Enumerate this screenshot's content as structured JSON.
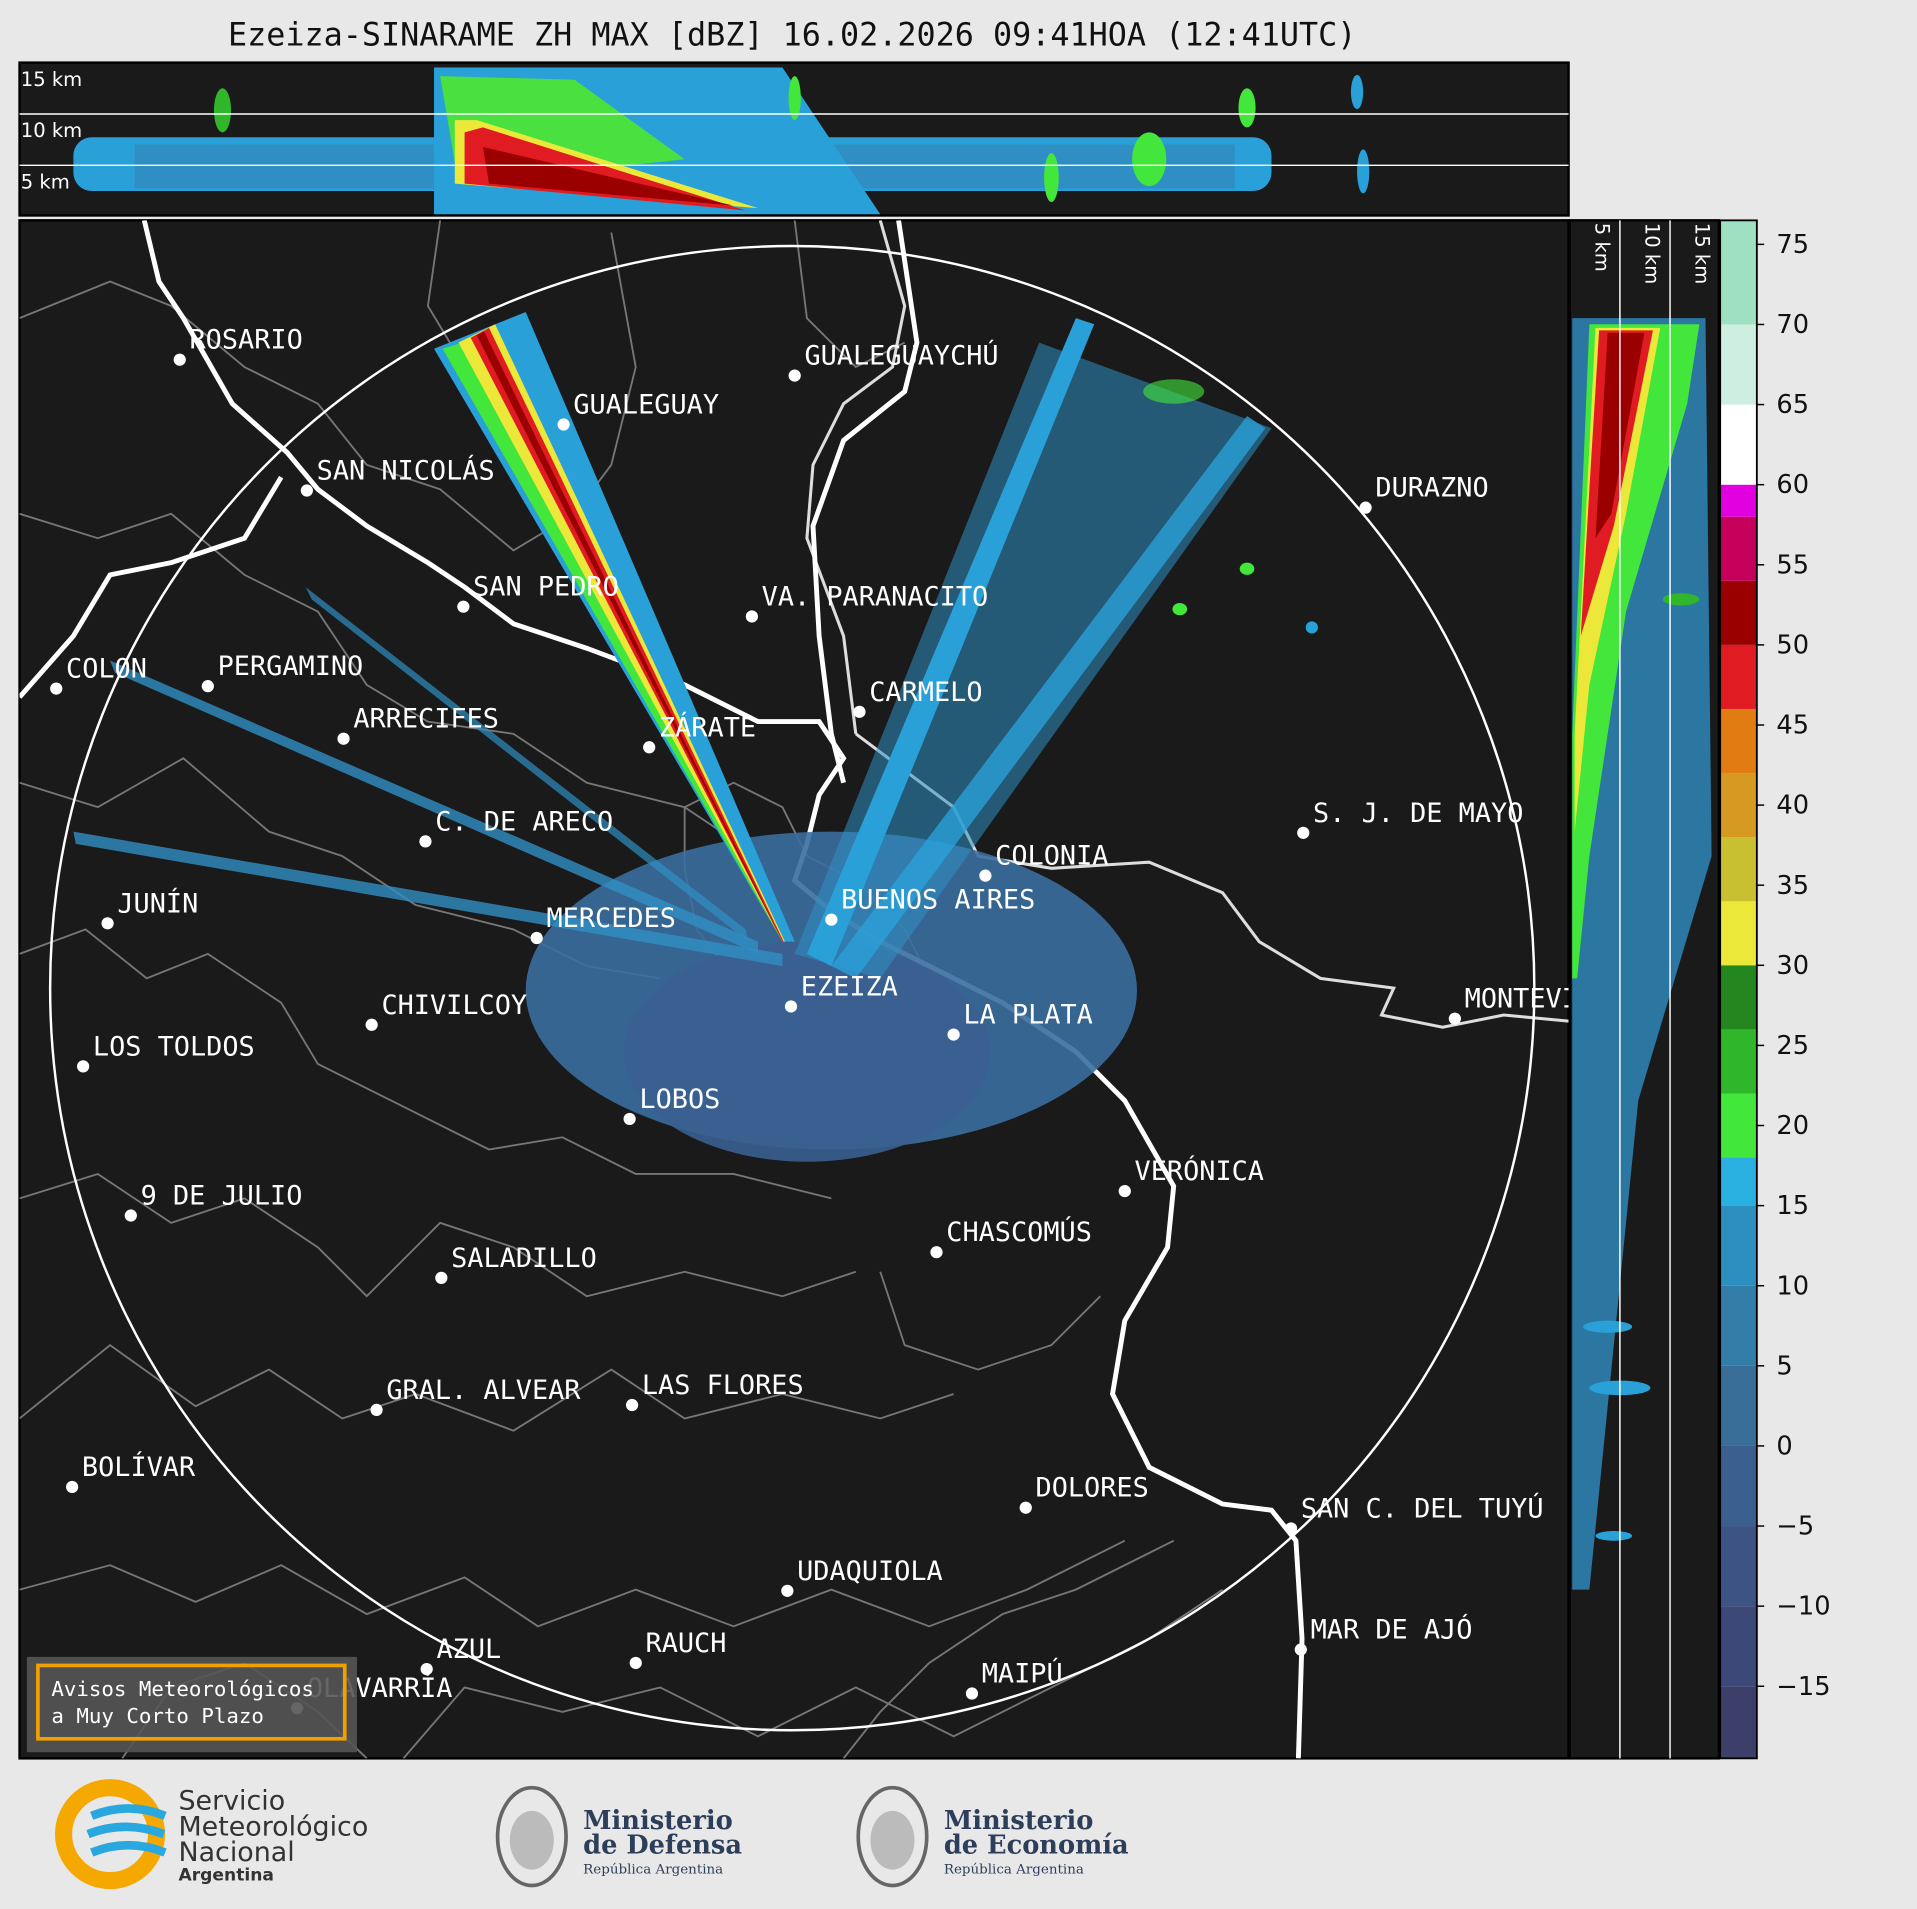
{
  "title": "Ezeiza-SINARAME ZH MAX [dBZ] 16.02.2026 09:41HOA (12:41UTC)",
  "height_labels": [
    "15 km",
    "10 km",
    "5 km"
  ],
  "cities": [
    "ROSARIO",
    "GUALEGUAYCHÚ",
    "GUALEGUAY",
    "SAN NICOLÁS",
    "DURAZNO",
    "SAN PEDRO",
    "VA. PARANACITO",
    "COLON",
    "PERGAMINO",
    "CARMELO",
    "ARRECIFES",
    "ZÁRATE",
    "S. J. DE MAYO",
    "C. DE ARECO",
    "COLONIA",
    "BUENOS AIRES",
    "JUNÍN",
    "MERCEDES",
    "EZEIZA",
    "MONTEVIDEO",
    "LA PLATA",
    "CHIVILCOY",
    "LOS TOLDOS",
    "LOBOS",
    "VERÓNICA",
    "9 DE JULIO",
    "CHASCOMÚS",
    "SALADILLO",
    "GRAL. ALVEAR",
    "LAS FLORES",
    "BOLÍVAR",
    "DOLORES",
    "SAN C. DEL TUYÚ",
    "UDAQUIOLA",
    "MAR DE AJÓ",
    "AZUL",
    "RAUCH",
    "OLAVARRÍA",
    "MAIPÚ"
  ],
  "colorbar": {
    "lim": [
      -19.5,
      76.5
    ],
    "ticks": [
      75,
      70,
      65,
      60,
      55,
      50,
      45,
      40,
      35,
      30,
      25,
      20,
      15,
      10,
      5,
      0,
      {
        "value": -5,
        "label": "−5"
      },
      {
        "value": -10,
        "label": "−10"
      },
      {
        "value": -15,
        "label": "−15"
      }
    ],
    "band_edges": [
      -19.5,
      -15,
      -10,
      -5,
      0,
      5,
      10,
      15,
      18,
      22,
      26,
      30,
      34,
      38,
      42,
      46,
      50,
      54,
      58,
      60,
      65,
      70,
      76.5
    ],
    "band_colors": [
      "#3b3f6a",
      "#3c4878",
      "#3d5383",
      "#3b5f8e",
      "#386e98",
      "#337ea8",
      "#2c8fc0",
      "#29afe0",
      "#43e63a",
      "#2fb62b",
      "#23861f",
      "#ece83a",
      "#c8c030",
      "#d69a22",
      "#e07c12",
      "#e01c22",
      "#9a0000",
      "#c6005a",
      "#e000e0",
      "#ffffff",
      "#cdeee0",
      "#9fe0c2"
    ]
  },
  "warning_box": [
    "Avisos Meteorológicos",
    "a Muy Corto Plazo"
  ],
  "footer": {
    "smn": [
      "Servicio",
      "Meteorológico",
      "Nacional",
      "Argentina"
    ],
    "defensa": [
      "Ministerio",
      "de Defensa",
      "República Argentina"
    ],
    "economia": [
      "Ministerio",
      "de Economía",
      "República Argentina"
    ]
  }
}
